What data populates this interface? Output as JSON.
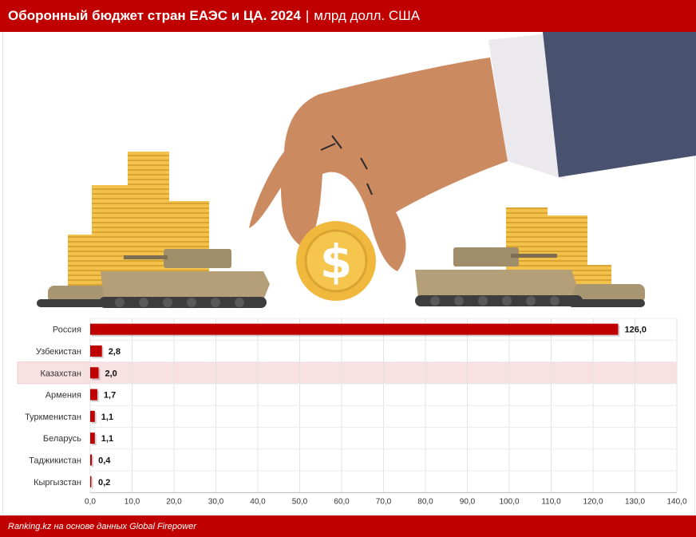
{
  "header": {
    "title": "Оборонный бюджет стран ЕАЭС и ЦА. 2024",
    "separator": "|",
    "unit": "млрд долл. США"
  },
  "footer": {
    "source": "Ranking.kz на основе данных Global Firepower"
  },
  "illustration": {
    "coin_symbol": "$"
  },
  "colors": {
    "brand": "#c00000",
    "bar": "#c00000",
    "highlight_row": "#f8e1e3"
  },
  "chart_data": {
    "type": "bar",
    "orientation": "horizontal",
    "categories": [
      "Россия",
      "Узбекистан",
      "Казахстан",
      "Армения",
      "Туркменистан",
      "Беларусь",
      "Таджикистан",
      "Кыргызстан"
    ],
    "values": [
      126.0,
      2.8,
      2.0,
      1.7,
      1.1,
      1.1,
      0.4,
      0.2
    ],
    "value_labels": [
      "126,0",
      "2,8",
      "2,0",
      "1,7",
      "1,1",
      "1,1",
      "0,4",
      "0,2"
    ],
    "highlight": "Казахстан",
    "xlim": [
      0,
      140
    ],
    "ticks": [
      0,
      10,
      20,
      30,
      40,
      50,
      60,
      70,
      80,
      90,
      100,
      110,
      120,
      130,
      140
    ],
    "tick_labels": [
      "0,0",
      "10,0",
      "20,0",
      "30,0",
      "40,0",
      "50,0",
      "60,0",
      "70,0",
      "80,0",
      "90,0",
      "100,0",
      "110,0",
      "120,0",
      "130,0",
      "140,0"
    ],
    "grid": true
  }
}
